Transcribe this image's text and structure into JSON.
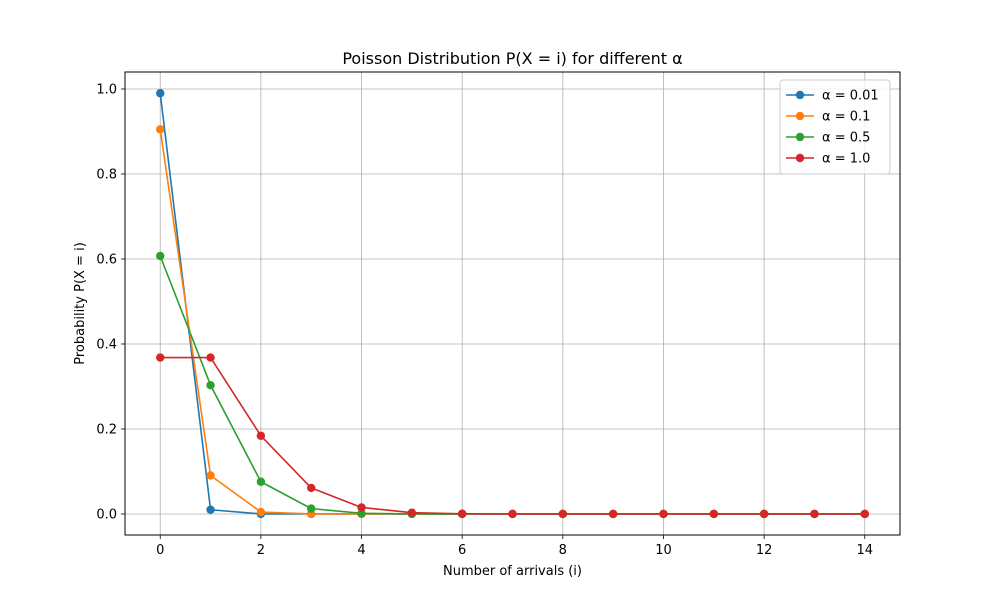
{
  "chart_data": {
    "type": "line",
    "title": "Poisson Distribution P(X = i) for different α",
    "xlabel": "Number of arrivals (i)",
    "ylabel": "Probability P(X = i)",
    "xlim": [
      -0.7,
      14.7
    ],
    "ylim": [
      -0.0495,
      1.04
    ],
    "xticks": [
      0,
      2,
      4,
      6,
      8,
      10,
      12,
      14
    ],
    "yticks": [
      0.0,
      0.2,
      0.4,
      0.6,
      0.8,
      1.0
    ],
    "xtick_labels": [
      "0",
      "2",
      "4",
      "6",
      "8",
      "10",
      "12",
      "14"
    ],
    "ytick_labels": [
      "0.0",
      "0.2",
      "0.4",
      "0.6",
      "0.8",
      "1.0"
    ],
    "grid": true,
    "legend_position": "top-right",
    "x": [
      0,
      1,
      2,
      3,
      4,
      5,
      6,
      7,
      8,
      9,
      10,
      11,
      12,
      13,
      14
    ],
    "series": [
      {
        "name": "α = 0.01",
        "color": "#1f77b4",
        "values": [
          0.99,
          0.0099,
          4.95e-05,
          1.7e-07,
          0,
          0,
          0,
          0,
          0,
          0,
          0,
          0,
          0,
          0,
          0
        ]
      },
      {
        "name": "α = 0.1",
        "color": "#ff7f0e",
        "values": [
          0.905,
          0.0905,
          0.00452,
          0.000151,
          3.8e-06,
          0,
          0,
          0,
          0,
          0,
          0,
          0,
          0,
          0,
          0
        ]
      },
      {
        "name": "α = 0.5",
        "color": "#2ca02c",
        "values": [
          0.607,
          0.303,
          0.0758,
          0.0126,
          0.00158,
          0.000158,
          1.32e-05,
          0,
          0,
          0,
          0,
          0,
          0,
          0,
          0
        ]
      },
      {
        "name": "α = 1.0",
        "color": "#d62728",
        "values": [
          0.368,
          0.368,
          0.184,
          0.0613,
          0.0153,
          0.00307,
          0.000511,
          7.3e-05,
          9.1e-06,
          1e-06,
          0,
          0,
          0,
          0,
          0
        ]
      }
    ]
  }
}
